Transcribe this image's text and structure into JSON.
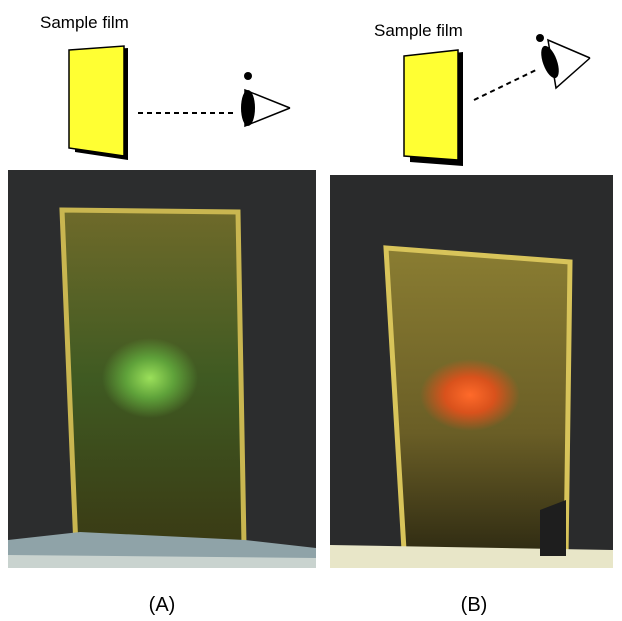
{
  "panels": [
    {
      "diagram_label": "Sample film",
      "caption": "(A)"
    },
    {
      "diagram_label": "Sample film",
      "caption": "(B)"
    }
  ]
}
